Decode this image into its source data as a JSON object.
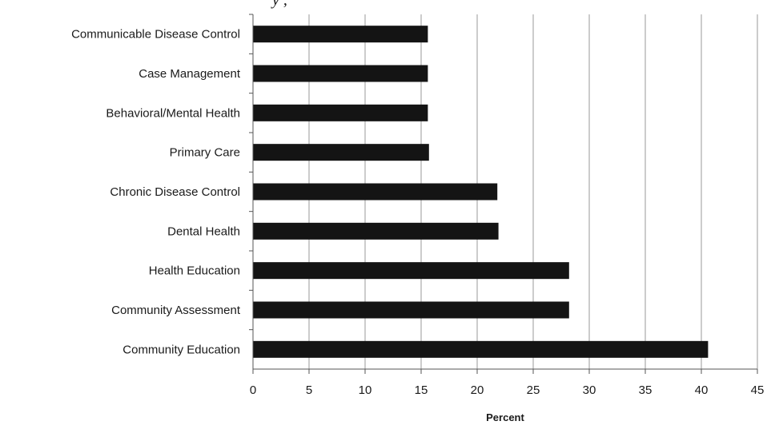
{
  "chart_data": {
    "type": "bar",
    "orientation": "horizontal",
    "title_fragment": "y ,",
    "categories": [
      "Communicable Disease Control",
      "Case Management",
      "Behavioral/Mental Health",
      "Primary Care",
      "Chronic Disease Control",
      "Dental Health",
      "Health Education",
      "Community Assessment",
      "Community Education"
    ],
    "values": [
      15.6,
      15.6,
      15.6,
      15.7,
      21.8,
      21.9,
      28.2,
      28.2,
      40.6
    ],
    "xlabel": "Percent",
    "xlim": [
      0,
      45
    ],
    "xticks": [
      0,
      5,
      10,
      15,
      20,
      25,
      30,
      35,
      40,
      45
    ],
    "grid": "vertical",
    "bar_color": "#141414",
    "grid_color": "#9a9a9a"
  }
}
